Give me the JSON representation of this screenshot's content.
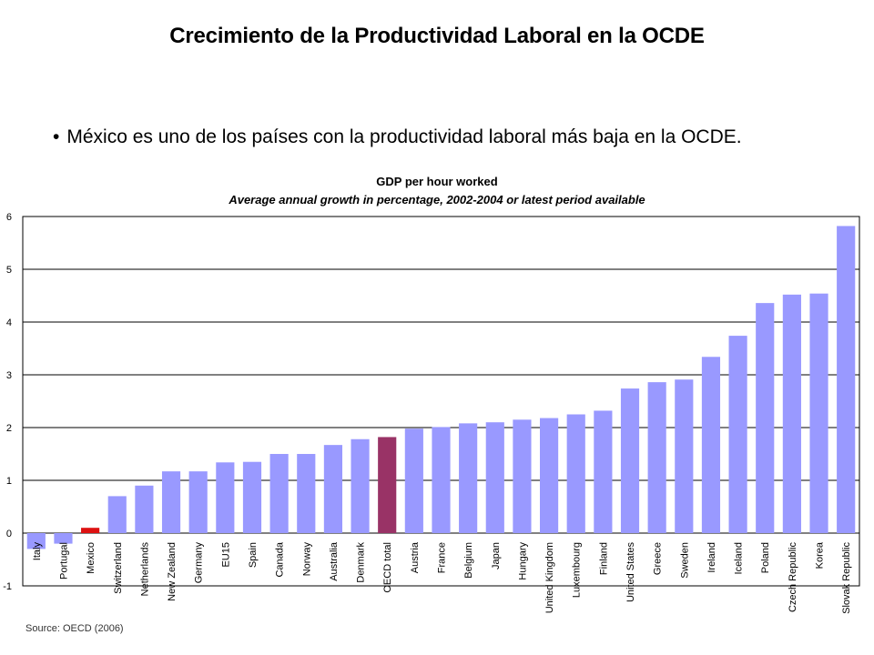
{
  "slide": {
    "title": "Crecimiento de la Productividad Laboral en la OCDE",
    "bullet": "México es uno de los países con la productividad laboral más baja en la OCDE."
  },
  "source": "Source: OECD (2006)",
  "colors": {
    "bar_default": "#9999ff",
    "bar_mexico": "#dd1111",
    "bar_oecd_total": "#993366",
    "grid": "#000000"
  },
  "chart_data": {
    "type": "bar",
    "title": "GDP per hour worked",
    "subtitle": "Average annual growth in percentage, 2002-2004 or latest period available",
    "xlabel": "",
    "ylabel": "",
    "ylim": [
      -1,
      6
    ],
    "yticks": [
      -1,
      0,
      1,
      2,
      3,
      4,
      5,
      6
    ],
    "grid": true,
    "categories": [
      "Italy",
      "Portugal",
      "Mexico",
      "Switzerland",
      "Netherlands",
      "New Zealand",
      "Germany",
      "EU15",
      "Spain",
      "Canada",
      "Norway",
      "Australia",
      "Denmark",
      "OECD total",
      "Austria",
      "France",
      "Belgium",
      "Japan",
      "Hungary",
      "United Kingdom",
      "Luxembourg",
      "Finland",
      "United States",
      "Greece",
      "Sweden",
      "Ireland",
      "Iceland",
      "Poland",
      "Czech Republic",
      "Korea",
      "Slovak Republic"
    ],
    "values": [
      -0.3,
      -0.2,
      0.1,
      0.7,
      0.9,
      1.17,
      1.17,
      1.34,
      1.35,
      1.5,
      1.5,
      1.67,
      1.78,
      1.82,
      1.98,
      2.01,
      2.08,
      2.1,
      2.15,
      2.18,
      2.25,
      2.32,
      2.74,
      2.86,
      2.91,
      3.34,
      3.74,
      4.36,
      4.52,
      4.54,
      5.82
    ],
    "highlight": {
      "Mexico": "#dd1111",
      "OECD total": "#993366"
    }
  }
}
